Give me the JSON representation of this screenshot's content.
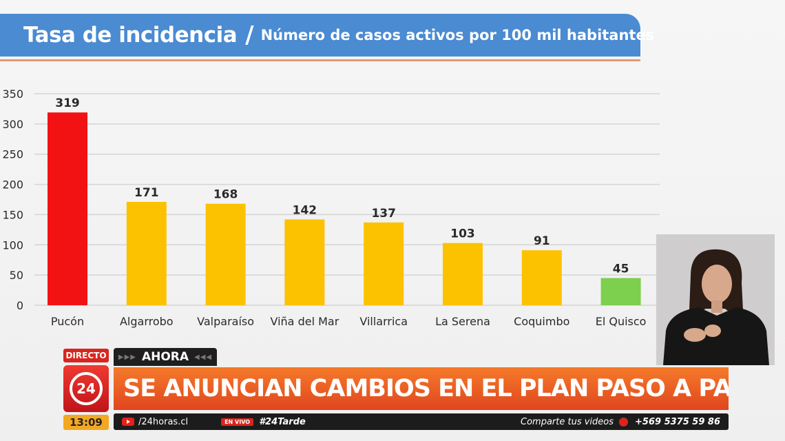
{
  "slide": {
    "title_main": "Tasa de incidencia",
    "title_separator": "/",
    "title_sub": "Número de casos activos por 100 mil habitantes"
  },
  "chart_data": {
    "type": "bar",
    "categories": [
      "Pucón",
      "Algarrobo",
      "Valparaíso",
      "Viña del Mar",
      "Villarrica",
      "La Serena",
      "Coquimbo",
      "El Quisco"
    ],
    "values": [
      319,
      171,
      168,
      142,
      137,
      103,
      91,
      45
    ],
    "bar_colors": [
      "#f21214",
      "#fcc200",
      "#fcc200",
      "#fcc200",
      "#fcc200",
      "#fcc200",
      "#fcc200",
      "#7dcf4e"
    ],
    "ylim": [
      0,
      350
    ],
    "yticks": [
      0,
      50,
      100,
      150,
      200,
      250,
      300,
      350
    ],
    "grid": true,
    "data_labels": true,
    "title": "",
    "xlabel": "",
    "ylabel": ""
  },
  "broadcast": {
    "live_badge": "DIRECTO",
    "channel_logo": "24",
    "time": "13:09",
    "now_label": "AHORA",
    "headline": "SE ANUNCIAN CAMBIOS EN EL PLAN PASO A PASO",
    "website": "/24horas.cl",
    "en_vivo": "EN VIVO",
    "hashtag": "#24Tarde",
    "share_text": "Comparte tus videos",
    "phone": "+569 5375 59 86",
    "colors": {
      "accent_red": "#d7261e",
      "headline_orange": "#f2661f",
      "clock_yellow": "#f3a823"
    }
  }
}
